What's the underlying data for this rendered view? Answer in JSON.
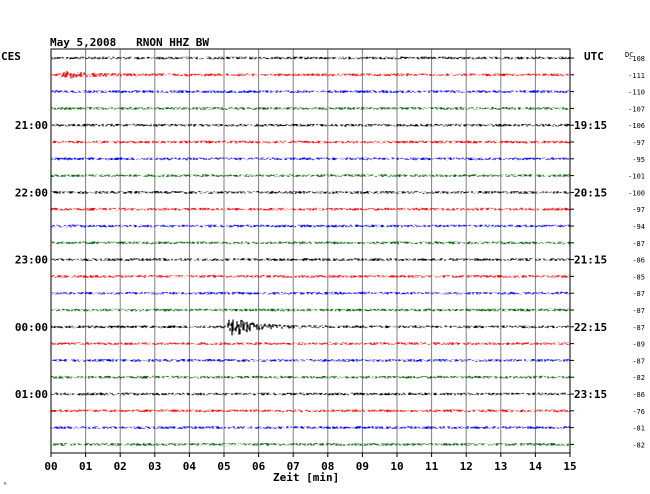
{
  "header": {
    "title": "May 5,2008   RNON HHZ BW",
    "left_timezone": "CES",
    "right_timezone": "UTC",
    "dc_label": "DC"
  },
  "footer": {
    "xlabel": "Zeit [min]",
    "corner_mark": "ᵐ"
  },
  "chart_data": {
    "type": "line",
    "title": "May 5,2008   RNON HHZ BW",
    "xlabel": "Zeit [min]",
    "x_ticks": [
      "00",
      "01",
      "02",
      "03",
      "04",
      "05",
      "06",
      "07",
      "08",
      "09",
      "10",
      "11",
      "12",
      "13",
      "14",
      "15"
    ],
    "xlim": [
      0,
      15
    ],
    "row_colors": [
      "#000000",
      "#ff0000",
      "#0000ff",
      "#006400"
    ],
    "left_time_labels": [
      {
        "row": 4,
        "label": "21:00"
      },
      {
        "row": 8,
        "label": "22:00"
      },
      {
        "row": 12,
        "label": "23:00"
      },
      {
        "row": 16,
        "label": "00:00"
      },
      {
        "row": 20,
        "label": "01:00"
      }
    ],
    "right_time_labels": [
      {
        "row": 4,
        "label": "19:15"
      },
      {
        "row": 8,
        "label": "20:15"
      },
      {
        "row": 12,
        "label": "21:15"
      },
      {
        "row": 16,
        "label": "22:15"
      },
      {
        "row": 20,
        "label": "23:15"
      }
    ],
    "dc_offsets": [
      "-108",
      "-111",
      "-110",
      "-107",
      "-106",
      "-97",
      "-95",
      "-101",
      "-100",
      "-97",
      "-94",
      "-87",
      "-86",
      "-85",
      "-87",
      "-87",
      "-87",
      "-89",
      "-87",
      "-82",
      "-86",
      "-76",
      "-81",
      "-82"
    ],
    "events": [
      {
        "row": 1,
        "start_min": 0.25,
        "peak_min": 0.45,
        "end_min": 2.5,
        "amplitude": 0.55
      },
      {
        "row": 16,
        "start_min": 5.05,
        "peak_min": 5.2,
        "end_min": 8.0,
        "amplitude": 1.6
      }
    ]
  }
}
